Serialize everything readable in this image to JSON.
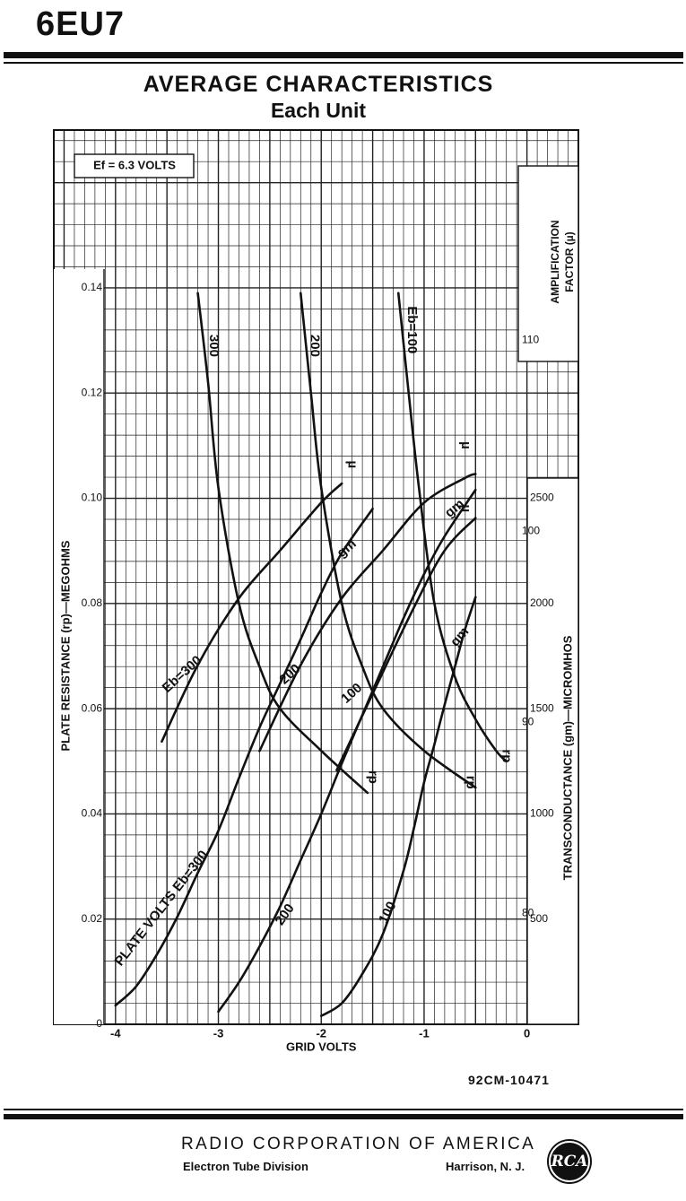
{
  "header": {
    "tube_type": "6EU7"
  },
  "chart_title": {
    "line1": "AVERAGE CHARACTERISTICS",
    "line2": "Each Unit"
  },
  "chart_data": {
    "type": "line",
    "title": "AVERAGE CHARACTERISTICS",
    "subtitle": "Each Unit",
    "xlabel": "GRID VOLTS",
    "xlim": [
      -4.6,
      0.5
    ],
    "x_ticks": [
      "-4",
      "-3",
      "-2",
      "-1",
      "0"
    ],
    "axes": {
      "rp": {
        "label": "PLATE RESISTANCE (rp)—MEGOHMS",
        "range": [
          0,
          0.17
        ],
        "ticks": [
          "0",
          "0.02",
          "0.04",
          "0.06",
          "0.08",
          "0.10",
          "0.12",
          "0.14"
        ]
      },
      "mu": {
        "label_line1": "AMPLIFICATION",
        "label_line2": "FACTOR (µ)",
        "range": [
          74.2,
          121
        ],
        "ticks": [
          "80",
          "90",
          "100",
          "110"
        ]
      },
      "gm": {
        "label": "TRANSCONDUCTANCE (gm)—MICROMHOS",
        "range": [
          0,
          4250
        ],
        "ticks": [
          "500",
          "1000",
          "1500",
          "2000",
          "2500"
        ]
      }
    },
    "annotation": "Ef = 6.3 VOLTS",
    "series": [
      {
        "name": "µ",
        "axis": "mu",
        "x": [
          -3.55,
          -3.2,
          -2.8,
          -2.4,
          -2.0,
          -1.8
        ],
        "y": [
          89,
          93,
          96.5,
          99,
          101.5,
          102.5
        ]
      },
      {
        "name": "µ",
        "axis": "mu",
        "x": [
          -2.6,
          -2.2,
          -1.8,
          -1.4,
          -1.0,
          -0.6,
          -0.5
        ],
        "y": [
          88.5,
          93,
          96.5,
          99,
          101.5,
          102.8,
          103
        ]
      },
      {
        "name": "µ",
        "axis": "mu",
        "x": [
          -1.85,
          -1.5,
          -1.1,
          -0.8,
          -0.5
        ],
        "y": [
          87.5,
          91.5,
          96,
          99,
          100.7
        ]
      },
      {
        "name": "rp",
        "axis": "rp",
        "x": [
          -3.2,
          -3.1,
          -3.0,
          -2.8,
          -2.6,
          -2.4,
          -2.0,
          -1.55
        ],
        "y": [
          0.139,
          0.122,
          0.102,
          0.08,
          0.068,
          0.06,
          0.052,
          0.044
        ]
      },
      {
        "name": "rp",
        "axis": "rp",
        "x": [
          -2.2,
          -2.1,
          -2.0,
          -1.8,
          -1.6,
          -1.4,
          -1.0,
          -0.5
        ],
        "y": [
          0.139,
          0.12,
          0.102,
          0.08,
          0.068,
          0.06,
          0.052,
          0.045
        ]
      },
      {
        "name": "rp",
        "axis": "rp",
        "x": [
          -1.25,
          -1.15,
          -1.05,
          -0.9,
          -0.7,
          -0.5,
          -0.3,
          -0.2
        ],
        "y": [
          0.139,
          0.12,
          0.102,
          0.08,
          0.066,
          0.058,
          0.052,
          0.05
        ]
      },
      {
        "name": "gm",
        "axis": "gm",
        "x": [
          -4.0,
          -3.8,
          -3.6,
          -3.4,
          -3.2,
          -3.0,
          -2.8,
          -2.6,
          -2.4,
          -2.2,
          -2.0,
          -1.8,
          -1.5
        ],
        "y": [
          90,
          180,
          330,
          510,
          720,
          920,
          1170,
          1410,
          1620,
          1830,
          2050,
          2240,
          2450
        ]
      },
      {
        "name": "gm",
        "axis": "gm",
        "x": [
          -3.0,
          -2.8,
          -2.6,
          -2.4,
          -2.2,
          -2.0,
          -1.8,
          -1.6,
          -1.4,
          -1.2,
          -1.0,
          -0.8,
          -0.5
        ],
        "y": [
          60,
          200,
          370,
          560,
          780,
          1000,
          1240,
          1470,
          1700,
          1930,
          2140,
          2320,
          2540
        ]
      },
      {
        "name": "gm",
        "axis": "gm",
        "x": [
          -2.0,
          -1.8,
          -1.6,
          -1.4,
          -1.2,
          -1.1,
          -1.0,
          -0.9,
          -0.8,
          -0.7,
          -0.6,
          -0.5
        ],
        "y": [
          40,
          100,
          240,
          430,
          730,
          930,
          1150,
          1330,
          1520,
          1700,
          1880,
          2030
        ]
      }
    ],
    "curve_labels": [
      {
        "text": "Eb=300",
        "x": -3.35,
        "y": 92.5,
        "axis": "mu",
        "rotate": -42
      },
      {
        "text": "200",
        "x": -2.3,
        "y": 92.5,
        "axis": "mu",
        "rotate": -42
      },
      {
        "text": "100",
        "x": -1.7,
        "y": 91.5,
        "axis": "mu",
        "rotate": -42
      },
      {
        "text": "µ",
        "x": -1.7,
        "y": 103.5,
        "axis": "mu",
        "rotate": 90
      },
      {
        "text": "µ",
        "x": -0.6,
        "y": 104.5,
        "axis": "mu",
        "rotate": 90
      },
      {
        "text": "µ",
        "x": -0.6,
        "y": 101.2,
        "axis": "mu",
        "rotate": 90
      },
      {
        "text": "300",
        "x": -3.05,
        "y": 0.129,
        "axis": "rp",
        "rotate": 90
      },
      {
        "text": "200",
        "x": -2.07,
        "y": 0.129,
        "axis": "rp",
        "rotate": 90
      },
      {
        "text": "Eb=100",
        "x": -1.12,
        "y": 0.132,
        "axis": "rp",
        "rotate": 90
      },
      {
        "text": "rp",
        "x": -1.5,
        "y": 0.047,
        "axis": "rp",
        "rotate": 90
      },
      {
        "text": "rp",
        "x": -0.55,
        "y": 0.046,
        "axis": "rp",
        "rotate": 90
      },
      {
        "text": "rp",
        "x": -0.2,
        "y": 0.051,
        "axis": "rp",
        "rotate": 90
      },
      {
        "text": "gm",
        "x": -1.75,
        "y": 2260,
        "axis": "gm",
        "rotate": -40
      },
      {
        "text": "gm",
        "x": -0.7,
        "y": 2450,
        "axis": "gm",
        "rotate": -40
      },
      {
        "text": "gm",
        "x": -0.65,
        "y": 1840,
        "axis": "gm",
        "rotate": -50
      },
      {
        "text": "PLATE VOLTS Eb=300",
        "x": -3.55,
        "y": 550,
        "axis": "gm",
        "rotate": -52
      },
      {
        "text": "200",
        "x": -2.35,
        "y": 520,
        "axis": "gm",
        "rotate": -55
      },
      {
        "text": "100",
        "x": -1.35,
        "y": 530,
        "axis": "gm",
        "rotate": -63
      }
    ],
    "grid": true,
    "grid_step_x": 0.1,
    "grid_step_rp": 0.004
  },
  "chart_code": "92CM-10471",
  "footer": {
    "company": "RADIO CORPORATION OF AMERICA",
    "division": "Electron Tube Division",
    "location": "Harrison, N. J.",
    "logo_text": "RCA"
  }
}
